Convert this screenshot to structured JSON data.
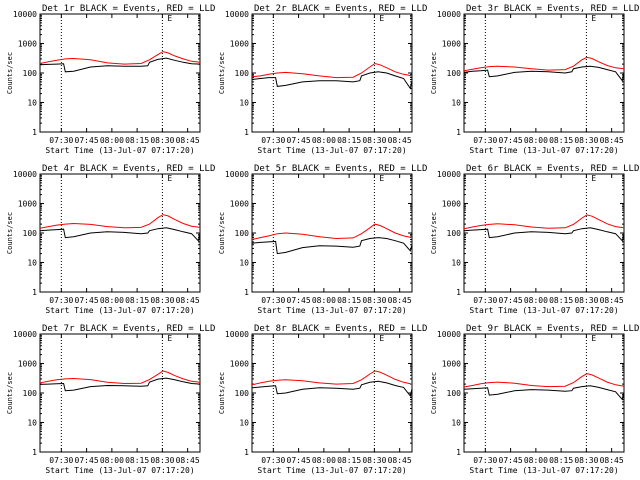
{
  "colors": {
    "events": "#000000",
    "lld": "#ff0000",
    "axis": "#000000",
    "background": "#ffffff"
  },
  "shared": {
    "ylabel": "Counts/sec",
    "xlabel": "Start Time (13-Jul-07 07:17:20)",
    "x_tick_labels": [
      "07:30",
      "07:45",
      "08:00",
      "08:15",
      "08:30",
      "08:45"
    ],
    "x_tick_minutes": [
      12.67,
      27.67,
      42.67,
      57.67,
      72.67,
      87.67
    ],
    "y_tick_labels": [
      "1",
      "10",
      "100",
      "1000",
      "10000"
    ],
    "y_tick_values": [
      1,
      10,
      100,
      1000,
      10000
    ],
    "xlim_minutes": [
      0,
      95
    ],
    "ylim": [
      1,
      10000
    ],
    "y_scale": "log",
    "vlines_minutes": [
      12.67,
      72.67
    ],
    "marker_label": "E"
  },
  "chart_data": [
    {
      "type": "line",
      "title": "Det 1r BLACK = Events, RED = LLD",
      "series": [
        {
          "x": [
            0,
            5,
            10,
            14,
            15,
            20,
            30,
            40,
            50,
            60,
            64,
            65,
            70,
            75,
            80,
            85,
            90,
            95
          ],
          "values": [
            190,
            195,
            200,
            205,
            110,
            115,
            160,
            175,
            170,
            170,
            175,
            230,
            290,
            320,
            270,
            230,
            205,
            200
          ]
        },
        {
          "x": [
            0,
            5,
            10,
            15,
            20,
            30,
            40,
            50,
            60,
            65,
            70,
            73,
            76,
            80,
            85,
            90,
            95
          ],
          "values": [
            210,
            240,
            270,
            300,
            310,
            280,
            220,
            200,
            210,
            280,
            420,
            530,
            480,
            380,
            300,
            250,
            230
          ]
        }
      ]
    },
    {
      "type": "line",
      "title": "Det 2r BLACK = Events, RED = LLD",
      "series": [
        {
          "x": [
            0,
            5,
            10,
            14,
            15,
            20,
            30,
            40,
            50,
            60,
            64,
            65,
            70,
            75,
            80,
            85,
            90,
            94,
            95
          ],
          "values": [
            60,
            65,
            70,
            70,
            35,
            38,
            50,
            55,
            55,
            50,
            55,
            80,
            100,
            110,
            100,
            80,
            65,
            30,
            55
          ]
        },
        {
          "x": [
            0,
            5,
            10,
            15,
            20,
            30,
            40,
            50,
            60,
            65,
            70,
            73,
            76,
            80,
            85,
            90,
            95
          ],
          "values": [
            75,
            80,
            90,
            100,
            105,
            95,
            80,
            70,
            72,
            100,
            160,
            210,
            190,
            150,
            110,
            90,
            80
          ]
        }
      ]
    },
    {
      "type": "line",
      "title": "Det 3r BLACK = Events, RED = LLD",
      "series": [
        {
          "x": [
            0,
            5,
            10,
            14,
            15,
            20,
            30,
            40,
            50,
            60,
            64,
            65,
            70,
            75,
            80,
            85,
            90,
            94,
            95
          ],
          "values": [
            105,
            115,
            120,
            125,
            75,
            80,
            105,
            115,
            110,
            100,
            110,
            140,
            160,
            170,
            155,
            130,
            110,
            55,
            100
          ]
        },
        {
          "x": [
            0,
            5,
            10,
            15,
            20,
            30,
            40,
            50,
            60,
            65,
            70,
            73,
            76,
            80,
            85,
            90,
            95
          ],
          "values": [
            120,
            135,
            150,
            165,
            170,
            160,
            140,
            125,
            130,
            170,
            280,
            340,
            310,
            240,
            180,
            150,
            140
          ]
        }
      ]
    },
    {
      "type": "line",
      "title": "Det 4r BLACK = Events, RED = LLD",
      "series": [
        {
          "x": [
            0,
            5,
            10,
            14,
            15,
            20,
            30,
            40,
            50,
            60,
            64,
            65,
            70,
            75,
            80,
            85,
            90,
            94,
            95
          ],
          "values": [
            120,
            125,
            130,
            135,
            70,
            75,
            100,
            110,
            105,
            95,
            100,
            120,
            140,
            150,
            130,
            110,
            95,
            55,
            90
          ]
        },
        {
          "x": [
            0,
            5,
            10,
            15,
            20,
            30,
            40,
            50,
            60,
            65,
            70,
            73,
            76,
            80,
            85,
            90,
            95
          ],
          "values": [
            145,
            165,
            185,
            200,
            210,
            195,
            165,
            150,
            155,
            200,
            330,
            420,
            380,
            290,
            210,
            170,
            155
          ]
        }
      ]
    },
    {
      "type": "line",
      "title": "Det 5r BLACK = Events, RED = LLD",
      "series": [
        {
          "x": [
            0,
            5,
            10,
            14,
            15,
            20,
            30,
            40,
            50,
            60,
            64,
            65,
            70,
            75,
            80,
            85,
            90,
            94,
            95
          ],
          "values": [
            45,
            48,
            50,
            52,
            20,
            22,
            32,
            37,
            36,
            33,
            36,
            55,
            65,
            70,
            65,
            55,
            45,
            25,
            40
          ]
        },
        {
          "x": [
            0,
            5,
            10,
            15,
            20,
            30,
            40,
            50,
            60,
            65,
            70,
            73,
            76,
            80,
            85,
            90,
            95
          ],
          "values": [
            60,
            70,
            80,
            95,
            100,
            90,
            75,
            65,
            68,
            95,
            150,
            200,
            180,
            140,
            100,
            80,
            70
          ]
        }
      ]
    },
    {
      "type": "line",
      "title": "Det 6r BLACK = Events, RED = LLD",
      "series": [
        {
          "x": [
            0,
            5,
            10,
            14,
            15,
            20,
            30,
            40,
            50,
            60,
            64,
            65,
            70,
            75,
            80,
            85,
            90,
            94,
            95
          ],
          "values": [
            120,
            125,
            130,
            135,
            70,
            75,
            100,
            110,
            105,
            95,
            100,
            120,
            140,
            150,
            130,
            110,
            95,
            55,
            90
          ]
        },
        {
          "x": [
            0,
            5,
            10,
            15,
            20,
            30,
            40,
            50,
            60,
            65,
            70,
            73,
            76,
            80,
            85,
            90,
            95
          ],
          "values": [
            140,
            160,
            180,
            195,
            205,
            190,
            160,
            145,
            150,
            195,
            320,
            410,
            370,
            285,
            205,
            165,
            150
          ]
        }
      ]
    },
    {
      "type": "line",
      "title": "Det 7r BLACK = Events, RED = LLD",
      "series": [
        {
          "x": [
            0,
            5,
            10,
            14,
            15,
            20,
            30,
            40,
            50,
            60,
            64,
            65,
            70,
            75,
            80,
            85,
            90,
            95
          ],
          "values": [
            195,
            200,
            205,
            210,
            120,
            125,
            165,
            180,
            175,
            170,
            175,
            235,
            295,
            320,
            280,
            240,
            210,
            200
          ]
        },
        {
          "x": [
            0,
            5,
            10,
            15,
            20,
            30,
            40,
            50,
            60,
            65,
            70,
            73,
            76,
            80,
            85,
            90,
            95
          ],
          "values": [
            220,
            250,
            280,
            300,
            310,
            285,
            230,
            210,
            215,
            285,
            430,
            560,
            500,
            390,
            300,
            250,
            230
          ]
        }
      ]
    },
    {
      "type": "line",
      "title": "Det 8r BLACK = Events, RED = LLD",
      "series": [
        {
          "x": [
            0,
            5,
            10,
            14,
            15,
            20,
            30,
            40,
            50,
            60,
            64,
            65,
            70,
            75,
            80,
            85,
            90,
            94,
            95
          ],
          "values": [
            150,
            160,
            170,
            175,
            95,
            100,
            135,
            150,
            145,
            135,
            145,
            190,
            230,
            250,
            220,
            180,
            155,
            80,
            140
          ]
        },
        {
          "x": [
            0,
            5,
            10,
            15,
            20,
            30,
            40,
            50,
            60,
            65,
            70,
            73,
            76,
            80,
            85,
            90,
            95
          ],
          "values": [
            190,
            220,
            250,
            270,
            280,
            260,
            220,
            200,
            210,
            280,
            440,
            560,
            510,
            400,
            290,
            230,
            200
          ]
        }
      ]
    },
    {
      "type": "line",
      "title": "Det 9r BLACK = Events, RED = LLD",
      "series": [
        {
          "x": [
            0,
            5,
            10,
            14,
            15,
            20,
            30,
            40,
            50,
            60,
            64,
            65,
            70,
            75,
            80,
            85,
            90,
            94,
            95
          ],
          "values": [
            135,
            140,
            145,
            150,
            85,
            90,
            120,
            130,
            125,
            115,
            120,
            145,
            165,
            175,
            155,
            130,
            110,
            60,
            105
          ]
        },
        {
          "x": [
            0,
            5,
            10,
            15,
            20,
            30,
            40,
            50,
            60,
            65,
            70,
            73,
            76,
            80,
            85,
            90,
            95
          ],
          "values": [
            160,
            180,
            205,
            225,
            235,
            215,
            180,
            165,
            170,
            225,
            360,
            450,
            410,
            320,
            235,
            190,
            170
          ]
        }
      ]
    }
  ]
}
